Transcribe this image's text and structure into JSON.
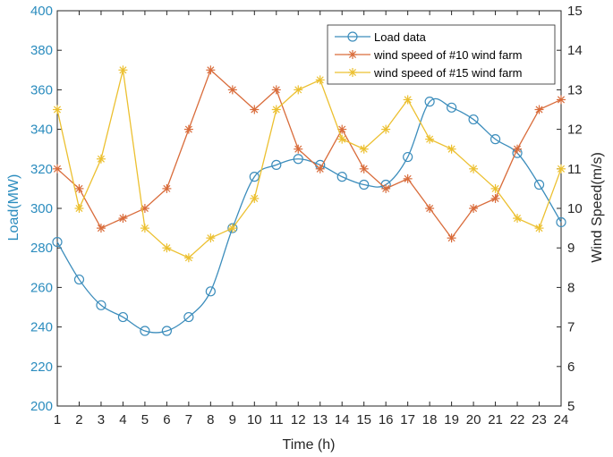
{
  "chart_data": {
    "type": "line",
    "xlabel": "Time (h)",
    "ylabel_left": "Load(MW)",
    "ylabel_right": "Wind Speed(m/s)",
    "x": [
      1,
      2,
      3,
      4,
      5,
      6,
      7,
      8,
      9,
      10,
      11,
      12,
      13,
      14,
      15,
      16,
      17,
      18,
      19,
      20,
      21,
      22,
      23,
      24
    ],
    "xlim": [
      1,
      24
    ],
    "ylim_left": [
      200,
      400
    ],
    "ylim_right": [
      5,
      15
    ],
    "yticks_left": [
      200,
      220,
      240,
      260,
      280,
      300,
      320,
      340,
      360,
      380,
      400
    ],
    "yticks_right": [
      5,
      6,
      7,
      8,
      9,
      10,
      11,
      12,
      13,
      14,
      15
    ],
    "grid": false,
    "legend_position": "top-right",
    "series": [
      {
        "name": "Load data",
        "axis": "left",
        "marker": "circle",
        "color": "#3c8dbc",
        "values": [
          283,
          264,
          251,
          245,
          238,
          238,
          245,
          258,
          290,
          316,
          322,
          325,
          322,
          316,
          312,
          312,
          326,
          354,
          351,
          345,
          335,
          328,
          312,
          293
        ]
      },
      {
        "name": "wind speed of #10 wind farm",
        "axis": "right",
        "marker": "asterisk",
        "color": "#d96c3b",
        "values": [
          11,
          10.5,
          9.5,
          9.75,
          10,
          10.5,
          12,
          13.5,
          13,
          12.5,
          13,
          11.5,
          11,
          12,
          11,
          10.5,
          10.75,
          10,
          9.25,
          10,
          10.25,
          11.5,
          12.5,
          12.75
        ]
      },
      {
        "name": "wind speed of #15 wind farm",
        "axis": "right",
        "marker": "asterisk",
        "color": "#ecc030",
        "values": [
          12.5,
          10,
          11.25,
          13.5,
          9.5,
          9,
          8.75,
          9.25,
          9.5,
          10.25,
          12.5,
          13,
          13.25,
          11.75,
          11.5,
          12,
          12.75,
          11.75,
          11.5,
          11,
          10.5,
          9.75,
          9.5,
          11
        ]
      }
    ]
  }
}
